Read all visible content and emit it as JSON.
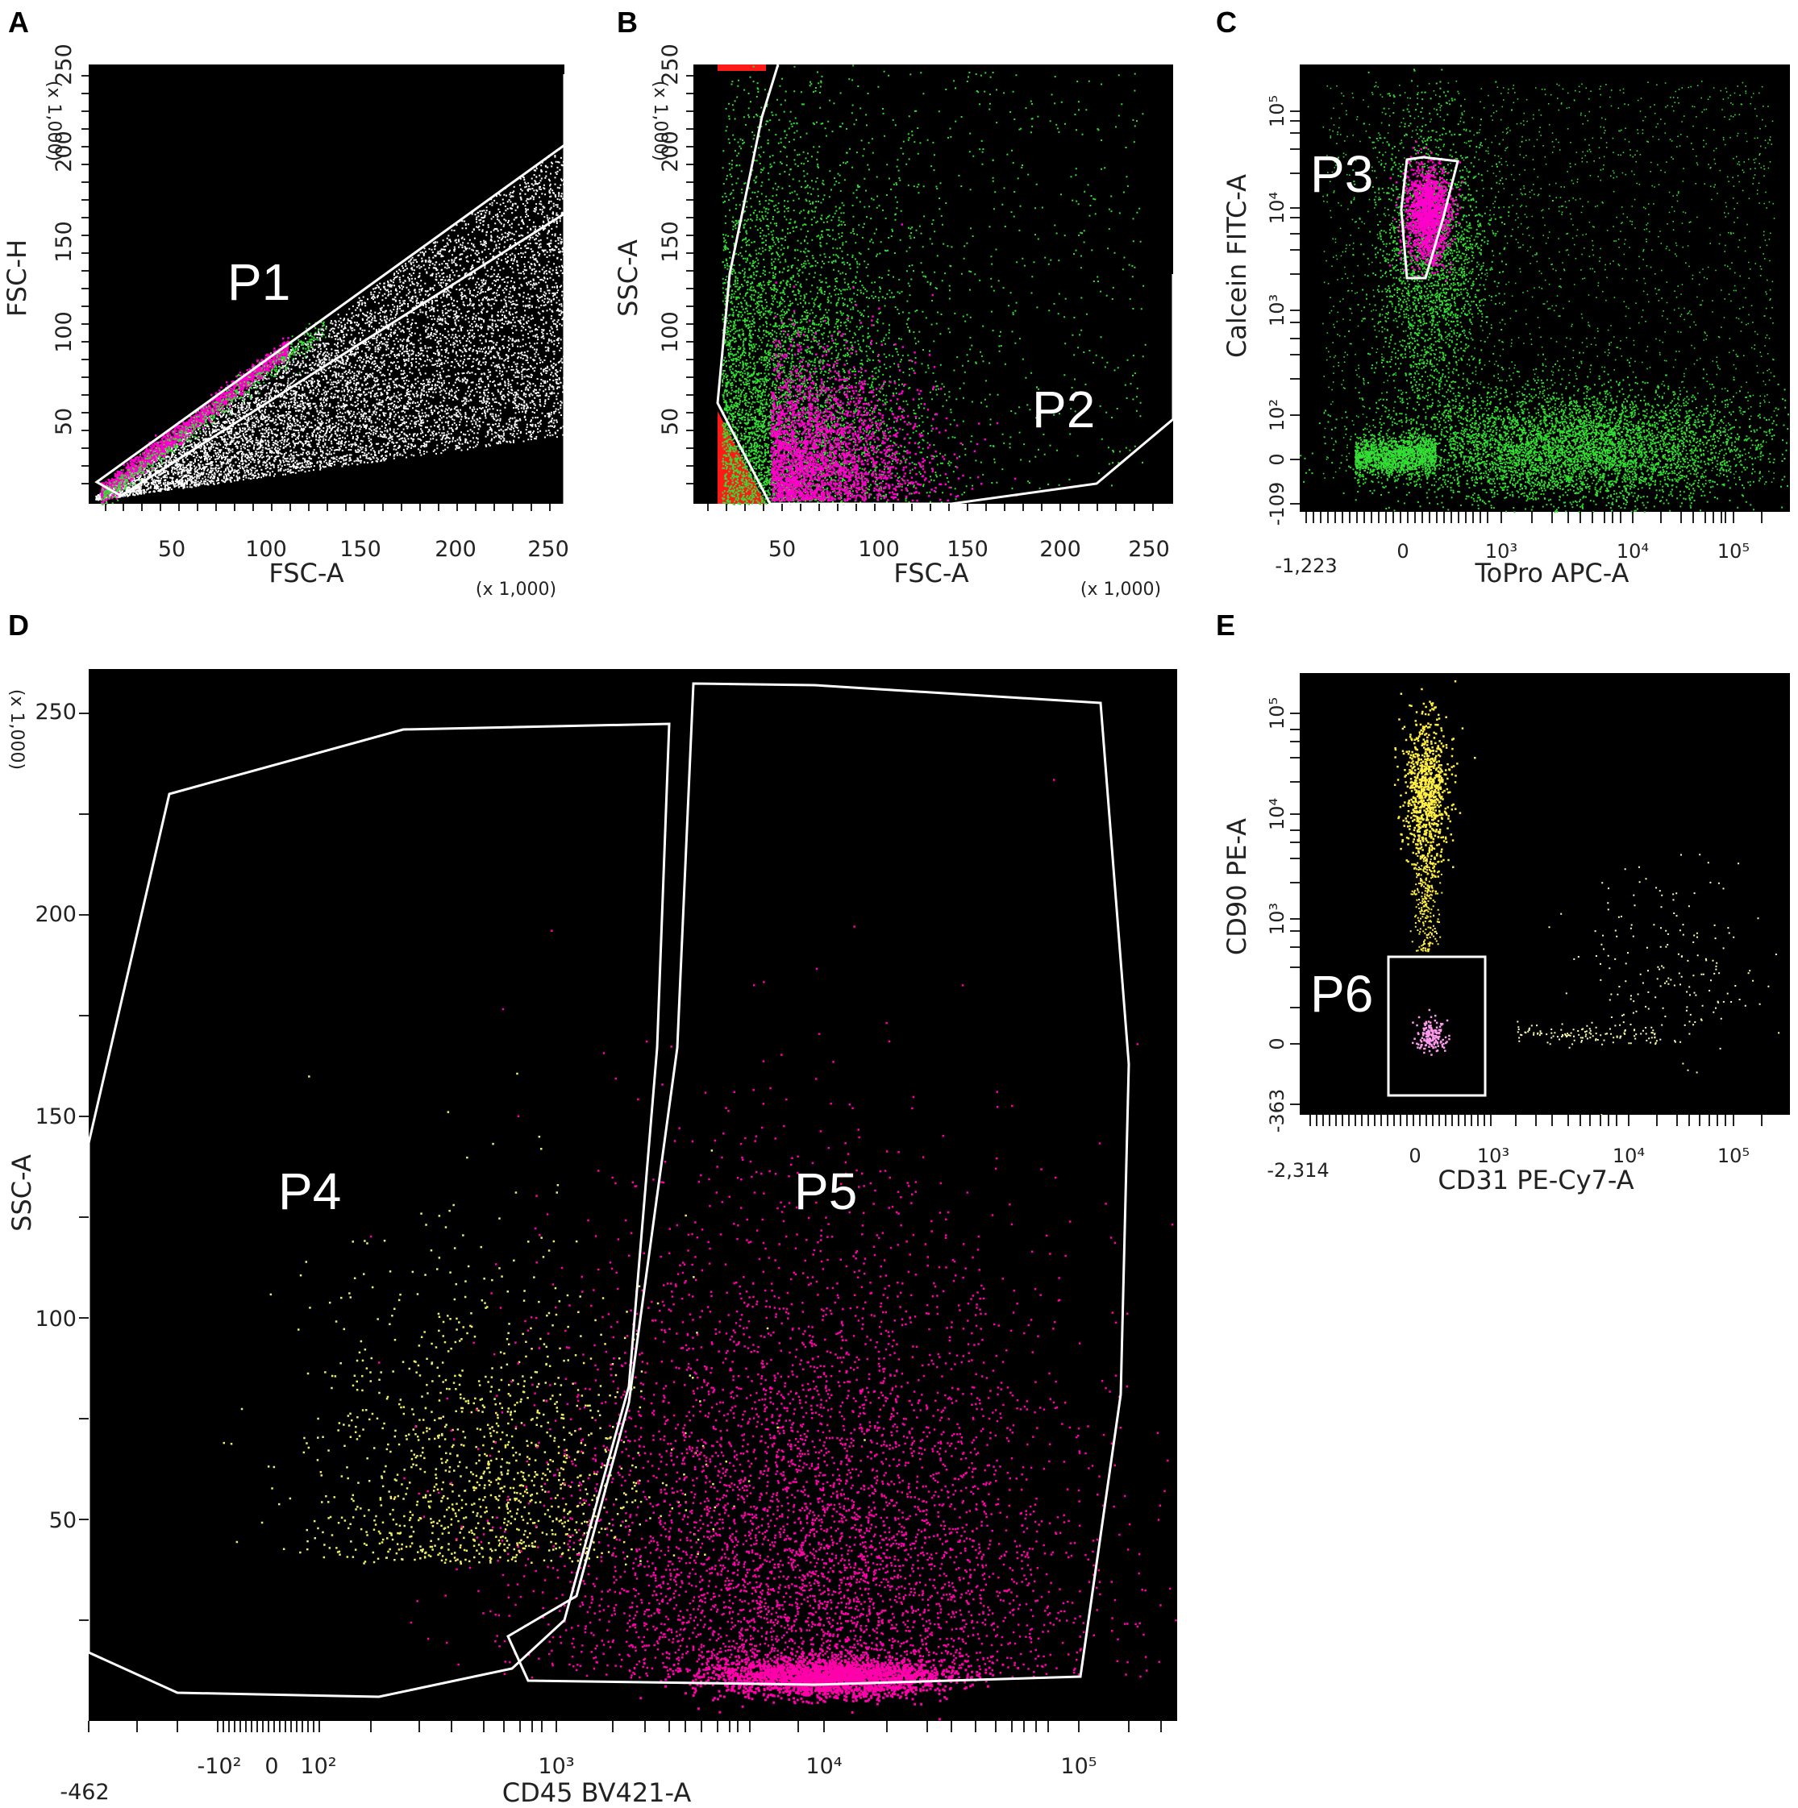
{
  "chart_data": [
    {
      "panel": "A",
      "type": "scatter",
      "xlabel": "FSC-A",
      "ylabel": "FSC-H",
      "x_multiplier": "(x 1,000)",
      "y_multiplier": "(x 1,000)",
      "xticks": [
        "50",
        "100",
        "150",
        "200",
        "250"
      ],
      "yticks": [
        "50",
        "100",
        "150",
        "200",
        "250"
      ],
      "xlim": [
        0,
        262
      ],
      "ylim": [
        0,
        262
      ],
      "gates": [
        {
          "name": "P1"
        }
      ],
      "series_colors": [
        "#ffffff",
        "#ff00cc",
        "#33dd33"
      ]
    },
    {
      "panel": "B",
      "type": "scatter",
      "xlabel": "FSC-A",
      "ylabel": "SSC-A",
      "x_multiplier": "(x 1,000)",
      "y_multiplier": "(x 1,000)",
      "xticks": [
        "50",
        "100",
        "150",
        "200",
        "250"
      ],
      "yticks": [
        "50",
        "100",
        "150",
        "200",
        "250"
      ],
      "xlim": [
        0,
        262
      ],
      "ylim": [
        0,
        262
      ],
      "gates": [
        {
          "name": "P2"
        }
      ],
      "series_colors": [
        "#33dd33",
        "#ff00cc",
        "#ff0000"
      ]
    },
    {
      "panel": "C",
      "type": "scatter",
      "xlabel": "ToPro APC-A",
      "ylabel": "Calcein FITC-A",
      "xticks": [
        "-1,223",
        "0",
        "10³",
        "10⁴",
        "10⁵"
      ],
      "yticks": [
        "-109",
        "0",
        "10²",
        "10³",
        "10⁴",
        "10⁵"
      ],
      "x_scale": "biexponential",
      "y_scale": "biexponential",
      "gates": [
        {
          "name": "P3"
        }
      ],
      "series_colors": [
        "#33dd33",
        "#ff00cc"
      ]
    },
    {
      "panel": "D",
      "type": "scatter",
      "xlabel": "CD45 BV421-A",
      "ylabel": "SSC-A",
      "y_multiplier": "(x 1,000)",
      "xticks": [
        "-462",
        "-10²",
        "0",
        "10²",
        "10³",
        "10⁴",
        "10⁵"
      ],
      "yticks": [
        "50",
        "100",
        "150",
        "200",
        "250"
      ],
      "x_scale": "biexponential",
      "ylim": [
        0,
        262
      ],
      "gates": [
        {
          "name": "P4"
        },
        {
          "name": "P5"
        }
      ],
      "series_colors": [
        "#eeee66",
        "#ff00aa"
      ]
    },
    {
      "panel": "E",
      "type": "scatter",
      "xlabel": "CD31 PE-Cy7-A",
      "ylabel": "CD90 PE-A",
      "xticks": [
        "-2,314",
        "0",
        "10³",
        "10⁴",
        "10⁵"
      ],
      "yticks": [
        "-363",
        "0",
        "10³",
        "10⁴",
        "10⁵"
      ],
      "x_scale": "biexponential",
      "y_scale": "biexponential",
      "gates": [
        {
          "name": "P6"
        }
      ],
      "series_colors": [
        "#ffee44",
        "#ffffaa",
        "#ff99ee"
      ]
    }
  ]
}
